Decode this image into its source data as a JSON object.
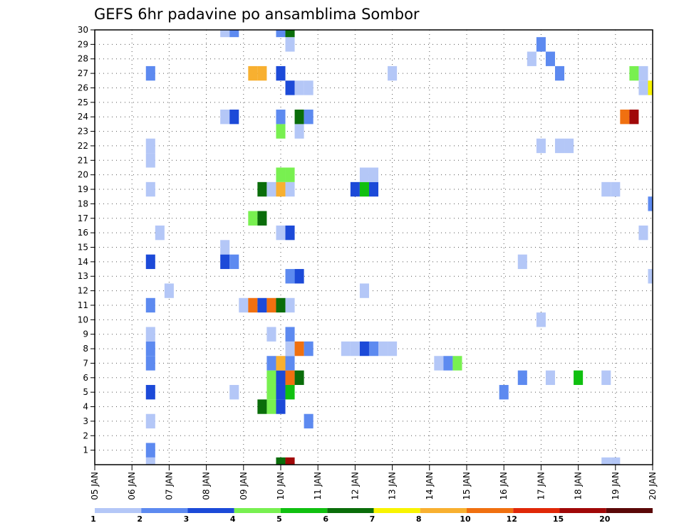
{
  "chart_data": {
    "type": "heatmap",
    "title": "GEFS 6hr padavine po ansamblima Sombor",
    "xlabel": "",
    "ylabel": "",
    "x_ticks": [
      "05 JAN",
      "06 JAN",
      "07 JAN",
      "08 JAN",
      "09 JAN",
      "10 JAN",
      "11 JAN",
      "12 JAN",
      "13 JAN",
      "14 JAN",
      "15 JAN",
      "16 JAN",
      "17 JAN",
      "18 JAN",
      "19 JAN",
      "20 JAN"
    ],
    "y_ticks": [
      "1",
      "2",
      "3",
      "4",
      "5",
      "6",
      "7",
      "8",
      "9",
      "10",
      "11",
      "12",
      "13",
      "14",
      "15",
      "16",
      "17",
      "18",
      "19",
      "20",
      "21",
      "22",
      "23",
      "24",
      "25",
      "26",
      "27",
      "28",
      "29",
      "30"
    ],
    "xlim": [
      0,
      60
    ],
    "ylim": [
      0,
      30
    ],
    "grid": true,
    "legend_position": "bottom",
    "legend": {
      "labels": [
        "1",
        "2",
        "3",
        "4",
        "5",
        "6",
        "7",
        "8",
        "10",
        "12",
        "15",
        "20"
      ],
      "colors": [
        "#b4c7f7",
        "#5d8af0",
        "#1c4ad8",
        "#78f050",
        "#10c010",
        "#0a6d0a",
        "#f8f400",
        "#f8b030",
        "#f07010",
        "#e02808",
        "#a00808",
        "#5a0808"
      ]
    },
    "cells": [
      {
        "x": 6,
        "y": 1,
        "v": 1
      },
      {
        "x": 6,
        "y": 2,
        "v": 2
      },
      {
        "x": 6,
        "y": 4,
        "v": 1
      },
      {
        "x": 6,
        "y": 6,
        "v": 3
      },
      {
        "x": 6,
        "y": 8,
        "v": 2
      },
      {
        "x": 6,
        "y": 9,
        "v": 2
      },
      {
        "x": 6,
        "y": 10,
        "v": 1
      },
      {
        "x": 6,
        "y": 12,
        "v": 2
      },
      {
        "x": 6,
        "y": 15,
        "v": 3
      },
      {
        "x": 6,
        "y": 20,
        "v": 1
      },
      {
        "x": 6,
        "y": 22,
        "v": 1
      },
      {
        "x": 6,
        "y": 23,
        "v": 1
      },
      {
        "x": 6,
        "y": 28,
        "v": 2
      },
      {
        "x": 7,
        "y": 17,
        "v": 1
      },
      {
        "x": 8,
        "y": 13,
        "v": 1
      },
      {
        "x": 14,
        "y": 16,
        "v": 1
      },
      {
        "x": 14,
        "y": 15,
        "v": 3
      },
      {
        "x": 15,
        "y": 15,
        "v": 2
      },
      {
        "x": 15,
        "y": 6,
        "v": 1
      },
      {
        "x": 14,
        "y": 25,
        "v": 1
      },
      {
        "x": 15,
        "y": 25,
        "v": 3
      },
      {
        "x": 14,
        "y": 31,
        "v": 1
      },
      {
        "x": 15,
        "y": 31,
        "v": 2
      },
      {
        "x": 16,
        "y": 12,
        "v": 1
      },
      {
        "x": 17,
        "y": 28,
        "v": 8
      },
      {
        "x": 18,
        "y": 28,
        "v": 8
      },
      {
        "x": 17,
        "y": 18,
        "v": 4
      },
      {
        "x": 18,
        "y": 18,
        "v": 6
      },
      {
        "x": 18,
        "y": 20,
        "v": 6
      },
      {
        "x": 19,
        "y": 20,
        "v": 1
      },
      {
        "x": 17,
        "y": 12,
        "v": 10
      },
      {
        "x": 18,
        "y": 12,
        "v": 3
      },
      {
        "x": 19,
        "y": 12,
        "v": 10
      },
      {
        "x": 20,
        "y": 12,
        "v": 6
      },
      {
        "x": 21,
        "y": 12,
        "v": 1
      },
      {
        "x": 19,
        "y": 8,
        "v": 2
      },
      {
        "x": 19,
        "y": 10,
        "v": 1
      },
      {
        "x": 19,
        "y": 7,
        "v": 4
      },
      {
        "x": 19,
        "y": 6,
        "v": 4
      },
      {
        "x": 19,
        "y": 5,
        "v": 4
      },
      {
        "x": 18,
        "y": 5,
        "v": 6
      },
      {
        "x": 20,
        "y": 1,
        "v": 6
      },
      {
        "x": 21,
        "y": 1,
        "v": 15
      },
      {
        "x": 20,
        "y": 5,
        "v": 3
      },
      {
        "x": 20,
        "y": 6,
        "v": 3
      },
      {
        "x": 20,
        "y": 7,
        "v": 3
      },
      {
        "x": 20,
        "y": 8,
        "v": 8
      },
      {
        "x": 21,
        "y": 8,
        "v": 2
      },
      {
        "x": 21,
        "y": 7,
        "v": 10
      },
      {
        "x": 22,
        "y": 7,
        "v": 6
      },
      {
        "x": 21,
        "y": 6,
        "v": 5
      },
      {
        "x": 21,
        "y": 9,
        "v": 1
      },
      {
        "x": 22,
        "y": 9,
        "v": 10
      },
      {
        "x": 23,
        "y": 9,
        "v": 2
      },
      {
        "x": 21,
        "y": 10,
        "v": 2
      },
      {
        "x": 21,
        "y": 14,
        "v": 2
      },
      {
        "x": 22,
        "y": 14,
        "v": 3
      },
      {
        "x": 20,
        "y": 17,
        "v": 1
      },
      {
        "x": 21,
        "y": 17,
        "v": 3
      },
      {
        "x": 20,
        "y": 20,
        "v": 8
      },
      {
        "x": 21,
        "y": 20,
        "v": 1
      },
      {
        "x": 20,
        "y": 21,
        "v": 4
      },
      {
        "x": 21,
        "y": 21,
        "v": 4
      },
      {
        "x": 20,
        "y": 24,
        "v": 4
      },
      {
        "x": 22,
        "y": 24,
        "v": 1
      },
      {
        "x": 20,
        "y": 25,
        "v": 2
      },
      {
        "x": 22,
        "y": 25,
        "v": 6
      },
      {
        "x": 23,
        "y": 25,
        "v": 2
      },
      {
        "x": 21,
        "y": 27,
        "v": 3
      },
      {
        "x": 22,
        "y": 27,
        "v": 1
      },
      {
        "x": 23,
        "y": 27,
        "v": 1
      },
      {
        "x": 20,
        "y": 28,
        "v": 3
      },
      {
        "x": 21,
        "y": 30,
        "v": 1
      },
      {
        "x": 20,
        "y": 31,
        "v": 2
      },
      {
        "x": 21,
        "y": 31,
        "v": 6
      },
      {
        "x": 23,
        "y": 4,
        "v": 2
      },
      {
        "x": 27,
        "y": 9,
        "v": 1
      },
      {
        "x": 28,
        "y": 9,
        "v": 1
      },
      {
        "x": 29,
        "y": 9,
        "v": 3
      },
      {
        "x": 30,
        "y": 9,
        "v": 2
      },
      {
        "x": 31,
        "y": 9,
        "v": 1
      },
      {
        "x": 32,
        "y": 9,
        "v": 1
      },
      {
        "x": 29,
        "y": 13,
        "v": 1
      },
      {
        "x": 28,
        "y": 20,
        "v": 3
      },
      {
        "x": 29,
        "y": 20,
        "v": 5
      },
      {
        "x": 30,
        "y": 20,
        "v": 3
      },
      {
        "x": 29,
        "y": 21,
        "v": 1
      },
      {
        "x": 30,
        "y": 21,
        "v": 1
      },
      {
        "x": 32,
        "y": 28,
        "v": 1
      },
      {
        "x": 37,
        "y": 8,
        "v": 1
      },
      {
        "x": 38,
        "y": 8,
        "v": 2
      },
      {
        "x": 39,
        "y": 8,
        "v": 4
      },
      {
        "x": 44,
        "y": 6,
        "v": 2
      },
      {
        "x": 46,
        "y": 7,
        "v": 2
      },
      {
        "x": 46,
        "y": 15,
        "v": 1
      },
      {
        "x": 47,
        "y": 29,
        "v": 1
      },
      {
        "x": 48,
        "y": 30,
        "v": 2
      },
      {
        "x": 48,
        "y": 11,
        "v": 1
      },
      {
        "x": 49,
        "y": 7,
        "v": 1
      },
      {
        "x": 48,
        "y": 23,
        "v": 1
      },
      {
        "x": 50,
        "y": 23,
        "v": 1
      },
      {
        "x": 51,
        "y": 23,
        "v": 1
      },
      {
        "x": 50,
        "y": 28,
        "v": 2
      },
      {
        "x": 49,
        "y": 29,
        "v": 2
      },
      {
        "x": 52,
        "y": 7,
        "v": 5
      },
      {
        "x": 55,
        "y": 7,
        "v": 1
      },
      {
        "x": 55,
        "y": 1,
        "v": 1
      },
      {
        "x": 56,
        "y": 1,
        "v": 1
      },
      {
        "x": 55,
        "y": 20,
        "v": 1
      },
      {
        "x": 56,
        "y": 20,
        "v": 1
      },
      {
        "x": 57,
        "y": 25,
        "v": 10
      },
      {
        "x": 58,
        "y": 25,
        "v": 15
      },
      {
        "x": 58,
        "y": 28,
        "v": 4
      },
      {
        "x": 59,
        "y": 28,
        "v": 1
      },
      {
        "x": 59,
        "y": 27,
        "v": 1
      },
      {
        "x": 60,
        "y": 27,
        "v": 7
      },
      {
        "x": 59,
        "y": 17,
        "v": 1
      },
      {
        "x": 60,
        "y": 19,
        "v": 2
      },
      {
        "x": 60,
        "y": 14,
        "v": 1
      }
    ]
  }
}
